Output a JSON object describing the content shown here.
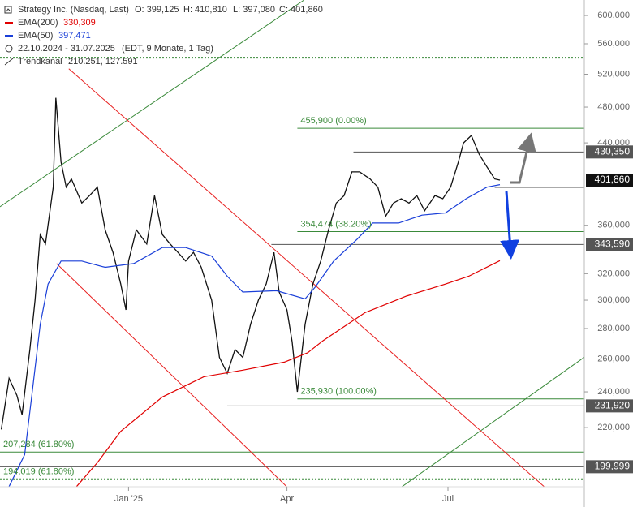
{
  "chart_data": {
    "type": "line",
    "title": "Strategy Inc. (Nasdaq, Last)",
    "header": [
      "O: 399,125",
      "H: 410,810",
      "L: 397,080",
      "C: 401,860"
    ],
    "period": "22.10.2024 - 31.07.2025",
    "period_note": "(EDT, 9 Monate, 1 Tag)",
    "channel_label": "Trendkanal",
    "channel_values": "210.251, 127.591",
    "log_scale": true,
    "grid": false,
    "xlim": [
      -0.5,
      224.5
    ],
    "xticks": [
      {
        "value": 49,
        "label": "Jan '25"
      },
      {
        "value": 110,
        "label": "Apr"
      },
      {
        "value": 172,
        "label": "Jul"
      }
    ],
    "ylim": [
      190.5,
      623
    ],
    "yticks": [
      {
        "value": 600,
        "label": "600,000"
      },
      {
        "value": 560,
        "label": "560,000"
      },
      {
        "value": 520,
        "label": "520,000"
      },
      {
        "value": 480,
        "label": "480,000"
      },
      {
        "value": 440,
        "label": "440,000"
      },
      {
        "value": 360,
        "label": "360,000"
      },
      {
        "value": 320,
        "label": "320,000"
      },
      {
        "value": 300,
        "label": "300,000"
      },
      {
        "value": 280,
        "label": "280,000"
      },
      {
        "value": 260,
        "label": "260,000"
      },
      {
        "value": 240,
        "label": "240,000"
      },
      {
        "value": 220,
        "label": "220,000"
      }
    ],
    "series": [
      {
        "name": "Price",
        "color": "#111111",
        "x": [
          0,
          3,
          6,
          8,
          11,
          13,
          15,
          17,
          20,
          21,
          23,
          25,
          27,
          31,
          34,
          37,
          40,
          43,
          46,
          48,
          49,
          52,
          56,
          59,
          62,
          65,
          68,
          71,
          74,
          77,
          81,
          84,
          87,
          90,
          93,
          96,
          99,
          102,
          105,
          107,
          110,
          112,
          114,
          117,
          120,
          123,
          126,
          129,
          132,
          135,
          138,
          142,
          145,
          148,
          151,
          154,
          157,
          160,
          163,
          167,
          170,
          173,
          176,
          178,
          181,
          184,
          187,
          190,
          192
        ],
        "values": [
          219,
          248,
          238,
          227,
          266,
          300,
          352,
          344,
          395,
          491,
          420,
          395,
          403,
          380,
          387,
          395,
          356,
          337,
          312,
          293,
          330,
          356,
          344,
          387,
          352,
          344,
          337,
          330,
          337,
          325,
          300,
          261,
          251,
          266,
          261,
          283,
          300,
          312,
          337,
          306,
          293,
          271,
          240,
          283,
          312,
          330,
          356,
          380,
          387,
          410,
          410,
          403,
          395,
          368,
          380,
          384,
          380,
          387,
          373,
          387,
          384,
          395,
          420,
          440,
          448,
          428,
          415,
          403,
          401.86
        ]
      },
      {
        "name": "EMA(200)",
        "last_label": "330,309",
        "color": "#e00000",
        "x": [
          29,
          37,
          46,
          62,
          78,
          93,
          109,
          118,
          124,
          140,
          156,
          171,
          180,
          192
        ],
        "values": [
          190.6,
          202,
          218,
          237,
          249,
          253,
          258,
          264,
          272,
          291,
          303,
          312,
          318,
          330.309
        ]
      },
      {
        "name": "EMA(50)",
        "last_label": "397,471",
        "color": "#1a3fd8",
        "x": [
          3,
          9,
          12,
          15,
          18,
          23,
          31,
          40,
          51,
          62,
          71,
          81,
          87,
          93,
          106,
          117,
          121,
          128,
          137,
          143,
          153,
          162,
          171,
          179,
          187,
          192
        ],
        "values": [
          190.6,
          206,
          241,
          283,
          312,
          330,
          330,
          325,
          328,
          341,
          341,
          334,
          318,
          306,
          307,
          301,
          310,
          330,
          348,
          362,
          362,
          369,
          371,
          384,
          395,
          397.471
        ]
      }
    ],
    "trend_lines": [
      {
        "color": "#3a8a3a",
        "x": [
          -0.6,
          116.6
        ],
        "values": [
          376.5,
          623
        ]
      },
      {
        "color": "#3a8a3a",
        "x": [
          143.1,
          224.4
        ],
        "values": [
          181.2,
          261
        ]
      },
      {
        "color": "#e82020",
        "x": [
          26,
          218.1
        ],
        "values": [
          527,
          181.2
        ]
      },
      {
        "color": "#e82020",
        "x": [
          21.3,
          118.1
        ],
        "values": [
          328,
          181.2
        ]
      }
    ],
    "levels": [
      {
        "value": 541.4,
        "color": "#3a8a3a",
        "dotted": true,
        "from": -0.5
      },
      {
        "value": 455.9,
        "label": "455,900 (0.00%)",
        "color": "#3a8a3a",
        "from": 114
      },
      {
        "value": 430.35,
        "color": "#555555",
        "from": 135.6
      },
      {
        "value": 394.79,
        "color": "#555555",
        "from": 190
      },
      {
        "value": 354.474,
        "label": "354,474 (38.20%)",
        "color": "#3a8a3a",
        "from": 114
      },
      {
        "value": 343.59,
        "color": "#555555",
        "from": 104
      },
      {
        "value": 235.93,
        "label": "235,930 (100.00%)",
        "color": "#3a8a3a",
        "from": 114
      },
      {
        "value": 231.92,
        "color": "#555555",
        "from": 87
      },
      {
        "value": 207.284,
        "label": "207,284 (61.80%)",
        "color": "#3a8a3a",
        "from": -0.5
      },
      {
        "value": 199.999,
        "color": "#555555",
        "from": -0.5
      },
      {
        "value": 194.019,
        "label": "194,019 (61.80%)",
        "color": "#3a8a3a",
        "dotted": true,
        "from": -0.5
      }
    ],
    "price_tags": [
      {
        "value": 430.35,
        "label": "430,350",
        "color": "#555555"
      },
      {
        "value": 401.86,
        "label": "401,860",
        "color": "#111111"
      },
      {
        "value": 343.59,
        "label": "343,590",
        "color": "#555555"
      },
      {
        "value": 231.92,
        "label": "231,920",
        "color": "#555555"
      },
      {
        "value": 199.999,
        "label": "199,999",
        "color": "#555555"
      }
    ]
  }
}
